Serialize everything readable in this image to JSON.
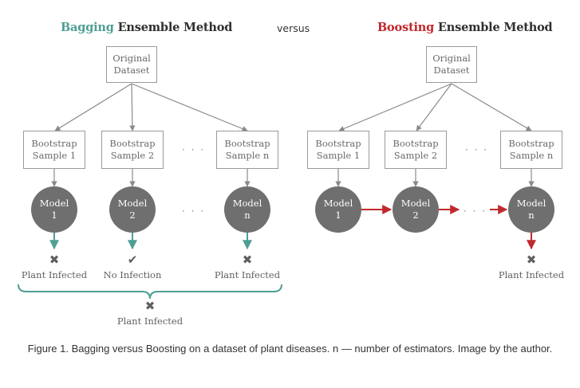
{
  "bagging": {
    "title_accent": "Bagging",
    "title_rest": " Ensemble Method",
    "original": "Original\nDataset",
    "samples": [
      "Bootstrap\nSample 1",
      "Bootstrap\nSample 2",
      "Bootstrap\nSample n"
    ],
    "models": [
      "Model\n1",
      "Model\n2",
      "Model\nn"
    ],
    "outcomes": [
      "Plant Infected",
      "No Infection",
      "Plant Infected"
    ],
    "outcome_symbols": [
      "✖",
      "✔",
      "✖"
    ],
    "final_symbol": "✖",
    "final_outcome": "Plant Infected",
    "dots": "· · ·"
  },
  "versus": "versus",
  "boosting": {
    "title_accent": "Boosting",
    "title_rest": " Ensemble Method",
    "original": "Original\nDataset",
    "samples": [
      "Bootstrap\nSample 1",
      "Bootstrap\nSample 2",
      "Bootstrap\nSample n"
    ],
    "models": [
      "Model\n1",
      "Model\n2",
      "Model\nn"
    ],
    "outcome_symbol": "✖",
    "outcome": "Plant Infected",
    "dots": "· · ·"
  },
  "colors": {
    "bagging_accent": "#4f9e94",
    "boosting_accent": "#c0282d",
    "model_fill": "#6f6f6f",
    "line": "#8a8a8a"
  },
  "caption": "Figure 1. Bagging versus Boosting on a dataset of plant diseases. n — number of estimators. Image by the author."
}
